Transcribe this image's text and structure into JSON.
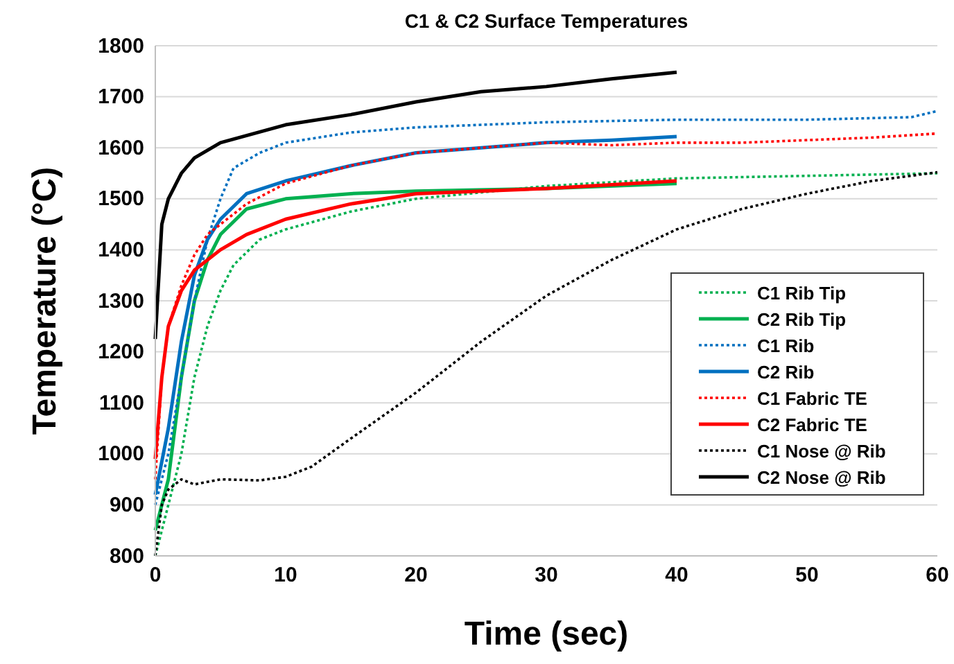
{
  "chart_data": {
    "type": "line",
    "title": "C1 & C2 Surface Temperatures",
    "xlabel": "Time (sec)",
    "ylabel": "Temperature (°C)",
    "xlim": [
      0,
      60
    ],
    "xticks": [
      0,
      10,
      20,
      30,
      40,
      50,
      60
    ],
    "ylim": [
      800,
      1800
    ],
    "yticks": [
      800,
      900,
      1000,
      1100,
      1200,
      1300,
      1400,
      1500,
      1600,
      1700,
      1800
    ],
    "grid": "y",
    "legend": "right",
    "series": [
      {
        "name": "C1 Rib Tip",
        "color": "#00b050",
        "line_style": "dotted",
        "x": [
          0,
          1,
          2,
          3,
          4,
          5,
          6,
          8,
          10,
          15,
          20,
          30,
          40,
          50,
          60
        ],
        "values": [
          800,
          900,
          1000,
          1150,
          1250,
          1320,
          1370,
          1420,
          1440,
          1475,
          1500,
          1525,
          1540,
          1545,
          1550
        ]
      },
      {
        "name": "C2 Rib Tip",
        "color": "#00b050",
        "line_style": "solid",
        "x": [
          0,
          1,
          2,
          3,
          4,
          5,
          7,
          10,
          15,
          20,
          30,
          40
        ],
        "values": [
          850,
          950,
          1150,
          1300,
          1380,
          1430,
          1480,
          1500,
          1510,
          1515,
          1520,
          1530
        ]
      },
      {
        "name": "C1 Rib",
        "color": "#0070c0",
        "line_style": "dotted",
        "x": [
          0,
          1,
          2,
          3,
          4,
          5,
          6,
          8,
          10,
          15,
          20,
          30,
          40,
          50,
          58,
          60
        ],
        "values": [
          900,
          1000,
          1150,
          1300,
          1420,
          1500,
          1560,
          1590,
          1610,
          1630,
          1640,
          1650,
          1655,
          1655,
          1660,
          1672
        ]
      },
      {
        "name": "C2 Rib",
        "color": "#0070c0",
        "line_style": "solid",
        "x": [
          0,
          1,
          2,
          3,
          4,
          5,
          7,
          10,
          15,
          20,
          25,
          30,
          35,
          40
        ],
        "values": [
          920,
          1050,
          1220,
          1350,
          1420,
          1460,
          1510,
          1535,
          1565,
          1590,
          1600,
          1610,
          1615,
          1622
        ]
      },
      {
        "name": "C1 Fabric TE",
        "color": "#ff0000",
        "line_style": "dotted",
        "x": [
          0,
          0.5,
          1,
          2,
          3,
          4,
          5,
          7,
          10,
          15,
          20,
          25,
          30,
          35,
          40,
          45,
          50,
          55,
          60
        ],
        "values": [
          950,
          1150,
          1250,
          1330,
          1390,
          1430,
          1450,
          1490,
          1530,
          1565,
          1590,
          1600,
          1610,
          1605,
          1610,
          1610,
          1615,
          1620,
          1628
        ]
      },
      {
        "name": "C2 Fabric TE",
        "color": "#ff0000",
        "line_style": "solid",
        "x": [
          0,
          0.5,
          1,
          2,
          3,
          5,
          7,
          10,
          15,
          20,
          30,
          40
        ],
        "values": [
          990,
          1150,
          1250,
          1320,
          1360,
          1400,
          1430,
          1460,
          1490,
          1510,
          1520,
          1535
        ]
      },
      {
        "name": "C1 Nose @ Rib",
        "color": "#000000",
        "line_style": "dotted",
        "x": [
          0,
          0.5,
          1,
          2,
          3,
          5,
          8,
          10,
          12,
          15,
          20,
          25,
          30,
          35,
          40,
          45,
          50,
          55,
          60
        ],
        "values": [
          800,
          900,
          930,
          950,
          940,
          950,
          948,
          955,
          975,
          1030,
          1120,
          1220,
          1310,
          1380,
          1440,
          1480,
          1510,
          1535,
          1552
        ]
      },
      {
        "name": "C2 Nose @ Rib",
        "color": "#000000",
        "line_style": "solid",
        "x": [
          0,
          0.5,
          1,
          2,
          3,
          5,
          10,
          15,
          20,
          25,
          30,
          35,
          40
        ],
        "values": [
          1225,
          1450,
          1500,
          1550,
          1580,
          1610,
          1645,
          1665,
          1690,
          1710,
          1720,
          1735,
          1748
        ]
      }
    ]
  }
}
